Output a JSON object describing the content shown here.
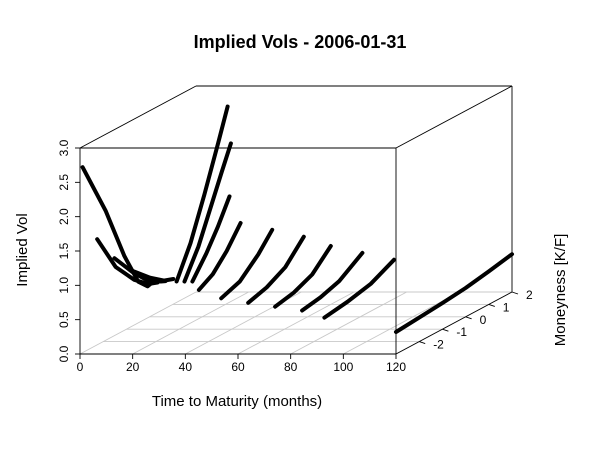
{
  "chart_data": {
    "type": "line",
    "plot_kind": "3d-scatter-lines",
    "title": "Implied Vols - 2006-01-31",
    "xlabel": "Time to Maturity (months)",
    "ylabel": "Moneyness [K/F]",
    "zlabel": "Implied Vol",
    "xlim": [
      0,
      120
    ],
    "ylim": [
      -3,
      2
    ],
    "zlim": [
      0,
      3
    ],
    "x_ticks": [
      "0",
      "20",
      "40",
      "60",
      "80",
      "100",
      "120"
    ],
    "y_ticks": [
      "-2",
      "-1",
      "0",
      "1",
      "2"
    ],
    "z_ticks": [
      "0.0",
      "0.5",
      "1.0",
      "1.5",
      "2.0",
      "2.5",
      "3.0"
    ],
    "grid": true,
    "box": true,
    "series": [
      {
        "maturity": 1,
        "moneyness": [
          -3.0,
          -2.0,
          -1.2,
          -0.6,
          -0.2,
          0.0
        ],
        "vol": [
          2.72,
          1.9,
          1.1,
          0.62,
          0.48,
          0.5
        ]
      },
      {
        "maturity": 3,
        "moneyness": [
          -2.6,
          -1.8,
          -1.0,
          -0.4,
          0.0
        ],
        "vol": [
          1.6,
          1.05,
          0.72,
          0.55,
          0.5
        ]
      },
      {
        "maturity": 6,
        "moneyness": [
          -2.2,
          -1.4,
          -0.8,
          -0.2,
          0.0
        ],
        "vol": [
          1.25,
          0.9,
          0.68,
          0.55,
          0.52
        ]
      },
      {
        "maturity": 9,
        "moneyness": [
          -1.8,
          -1.0,
          -0.4,
          0.0
        ],
        "vol": [
          1.0,
          0.75,
          0.6,
          0.55
        ]
      },
      {
        "maturity": 12,
        "moneyness": [
          -0.2,
          0.4,
          1.0,
          1.6,
          2.0
        ],
        "vol": [
          0.55,
          1.0,
          1.6,
          2.25,
          2.7
        ]
      },
      {
        "maturity": 15,
        "moneyness": [
          -0.2,
          0.4,
          0.9,
          1.4,
          1.8
        ],
        "vol": [
          0.55,
          0.95,
          1.4,
          1.85,
          2.2
        ]
      },
      {
        "maturity": 18,
        "moneyness": [
          -0.2,
          0.4,
          0.9,
          1.4
        ],
        "vol": [
          0.55,
          0.85,
          1.15,
          1.5
        ]
      },
      {
        "maturity": 24,
        "moneyness": [
          -0.6,
          0.0,
          0.6,
          1.2
        ],
        "vol": [
          0.5,
          0.62,
          0.85,
          1.15
        ]
      },
      {
        "maturity": 36,
        "moneyness": [
          -1.0,
          -0.2,
          0.6,
          1.2
        ],
        "vol": [
          0.45,
          0.55,
          0.8,
          1.05
        ]
      },
      {
        "maturity": 48,
        "moneyness": [
          -1.2,
          -0.4,
          0.4,
          1.2
        ],
        "vol": [
          0.42,
          0.5,
          0.65,
          0.95
        ]
      },
      {
        "maturity": 60,
        "moneyness": [
          -1.4,
          -0.6,
          0.2,
          1.0
        ],
        "vol": [
          0.4,
          0.46,
          0.58,
          0.85
        ]
      },
      {
        "maturity": 72,
        "moneyness": [
          -1.6,
          -0.8,
          0.0,
          1.0
        ],
        "vol": [
          0.38,
          0.43,
          0.52,
          0.75
        ]
      },
      {
        "maturity": 84,
        "moneyness": [
          -2.0,
          -1.0,
          0.0,
          1.0
        ],
        "vol": [
          0.35,
          0.4,
          0.48,
          0.65
        ]
      },
      {
        "maturity": 120,
        "moneyness": [
          -3.0,
          -2.0,
          -1.0,
          0.0,
          1.0,
          2.0
        ],
        "vol": [
          0.32,
          0.35,
          0.38,
          0.42,
          0.48,
          0.55
        ]
      }
    ]
  }
}
